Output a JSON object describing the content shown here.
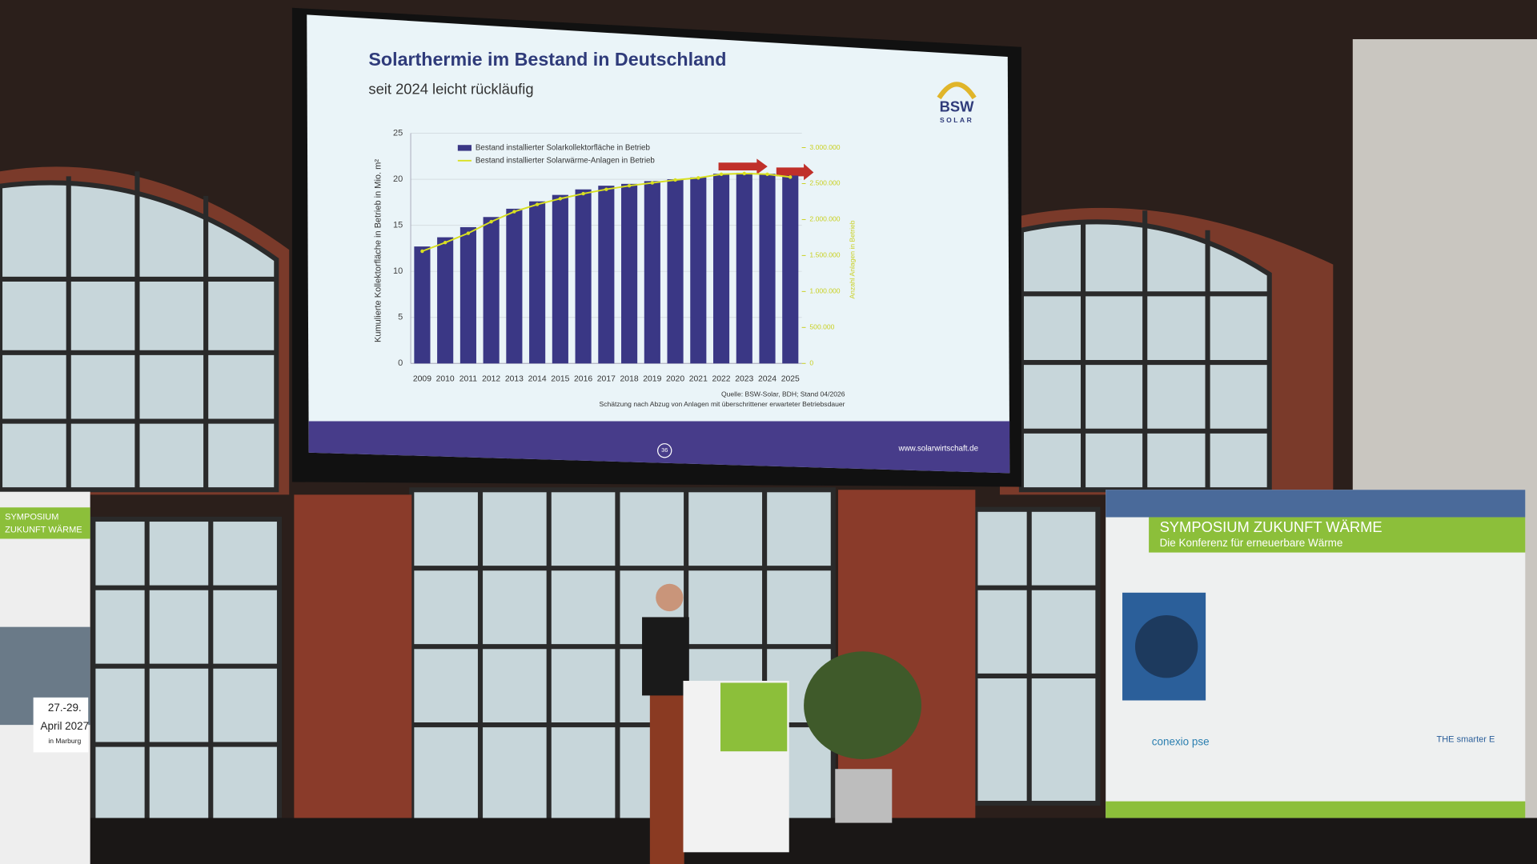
{
  "chart_data": {
    "type": "bar",
    "title": "Solarthermie im Bestand in Deutschland",
    "subtitle": "seit 2024 leicht rückläufig",
    "y_label": "Kumulierte Kollektorfläche in Betrieb in Mio. m²",
    "y2_label": "Anzahl Anlagen in Betrieb",
    "categories": [
      "2009",
      "2010",
      "2011",
      "2012",
      "2013",
      "2014",
      "2015",
      "2016",
      "2017",
      "2018",
      "2019",
      "2020",
      "2021",
      "2022",
      "2023",
      "2024",
      "2025"
    ],
    "series": [
      {
        "name": "Bestand installierter Solarkollektorfläche in Betrieb",
        "type": "bar",
        "color": "#3a3785",
        "values": [
          12.7,
          13.7,
          14.8,
          15.9,
          16.8,
          17.6,
          18.3,
          18.9,
          19.3,
          19.5,
          19.8,
          20.0,
          20.2,
          20.6,
          20.7,
          20.6,
          20.4
        ]
      },
      {
        "name": "Bestand installierter Solarwärme-Anlagen in Betrieb",
        "type": "line",
        "color": "#d9e021",
        "axis": "y2",
        "values": [
          1560000,
          1680000,
          1810000,
          1970000,
          2110000,
          2210000,
          2290000,
          2360000,
          2420000,
          2470000,
          2510000,
          2550000,
          2580000,
          2630000,
          2640000,
          2630000,
          2590000
        ]
      }
    ],
    "ylim": [
      0,
      25
    ],
    "yticks": [
      0,
      5,
      10,
      15,
      20,
      25
    ],
    "y2lim": [
      0,
      3200000
    ],
    "y2ticks": [
      0,
      {
        "value": 500000,
        "label": "500.000"
      },
      {
        "value": 1000000,
        "label": "1.000.000"
      },
      {
        "value": 1500000,
        "label": "1.500.000"
      },
      {
        "value": 2000000,
        "label": "2.000.000"
      },
      {
        "value": 2500000,
        "label": "2.500.000"
      },
      {
        "value": 3000000,
        "label": "3.000.000"
      }
    ],
    "grid": true,
    "legend": "top-left",
    "source": "Quelle: BSW-Solar, BDH; Stand 04/2026",
    "note": "Schätzung nach Abzug von Anlagen mit überschrittener erwarteter Betriebsdauer",
    "logo": [
      "BSW",
      "SOLAR"
    ],
    "footer": "www.solarwirtschaft.de",
    "page_number": "36"
  },
  "stage": {
    "banner_right": {
      "title": "SYMPOSIUM ZUKUNFT WÄRME",
      "subtitle": "Die Konferenz für erneuerbare Wärme",
      "sponsors": [
        "conexio pse",
        "THE smarter E"
      ]
    },
    "banner_left": {
      "title": [
        "SYMPOSIUM",
        "ZUKUNFT WÄRME"
      ],
      "dates": [
        "27.-29.",
        "April 2027",
        "in Marburg"
      ]
    }
  }
}
